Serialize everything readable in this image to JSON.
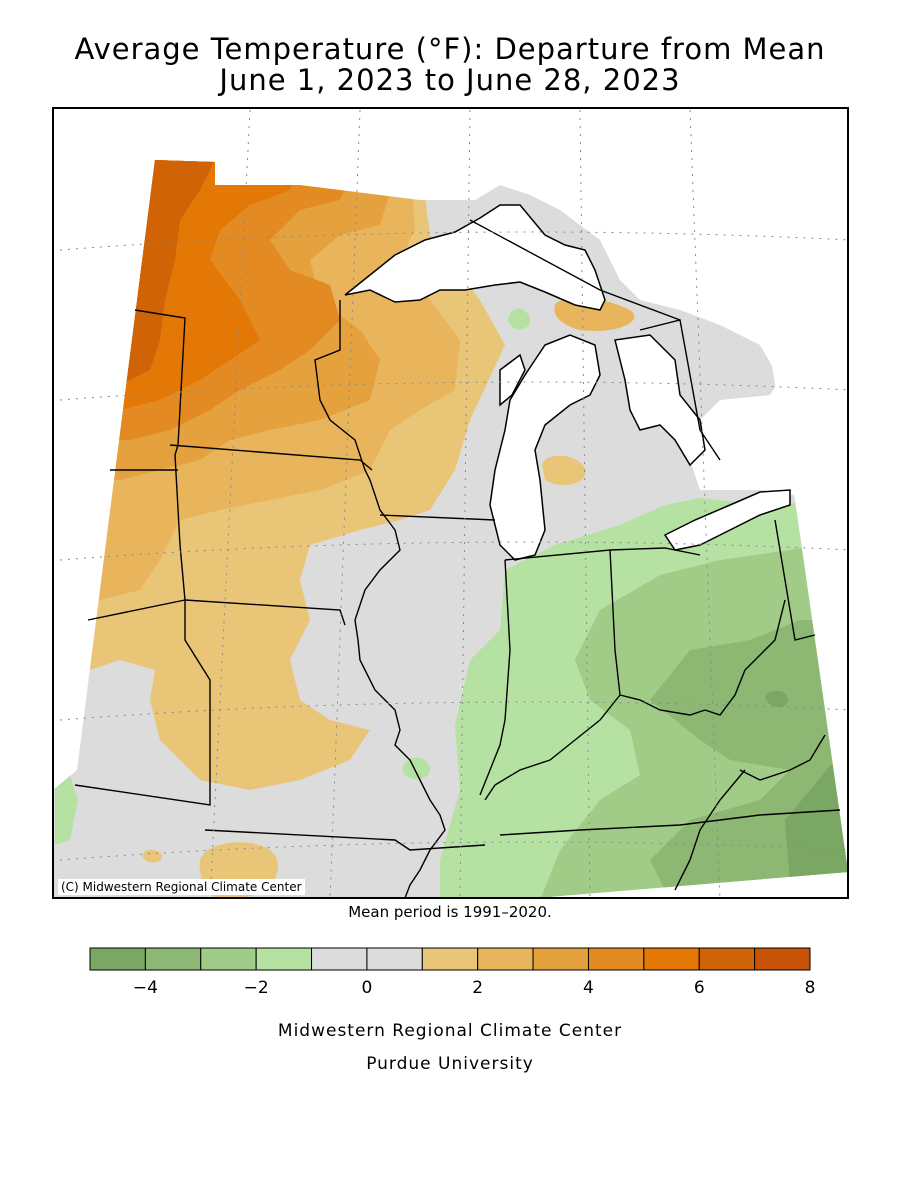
{
  "title": {
    "line1": "Average Temperature (°F): Departure from Mean",
    "line2": "June 1, 2023 to June 28, 2023"
  },
  "copyright": "(C) Midwestern Regional Climate Center",
  "mean_note": "Mean period is 1991–2020.",
  "credits": {
    "line1": "Midwestern Regional Climate Center",
    "line2": "Purdue University"
  },
  "legend": {
    "bins": [
      {
        "from": -5,
        "to": -4,
        "color": "#7aa864"
      },
      {
        "from": -4,
        "to": -3,
        "color": "#8cb873"
      },
      {
        "from": -3,
        "to": -2,
        "color": "#a0cc88"
      },
      {
        "from": -2,
        "to": -1,
        "color": "#b5e2a2"
      },
      {
        "from": -1,
        "to": 0,
        "color": "#dcdcdc"
      },
      {
        "from": 0,
        "to": 1,
        "color": "#dcdcdc"
      },
      {
        "from": 1,
        "to": 2,
        "color": "#e9c677"
      },
      {
        "from": 2,
        "to": 3,
        "color": "#e8b45c"
      },
      {
        "from": 3,
        "to": 4,
        "color": "#e6a13f"
      },
      {
        "from": 4,
        "to": 5,
        "color": "#e48a22"
      },
      {
        "from": 5,
        "to": 6,
        "color": "#e37806"
      },
      {
        "from": 6,
        "to": 7,
        "color": "#d06306"
      },
      {
        "from": 7,
        "to": 8,
        "color": "#c65308"
      }
    ],
    "tick_labels": [
      "−4",
      "−2",
      "0",
      "2",
      "4",
      "6",
      "8"
    ]
  },
  "colors": {
    "neutral": "#dcdcdc",
    "warm_1": "#e9c677",
    "warm_2": "#e8b45c",
    "warm_3": "#e6a13f",
    "warm_4": "#e48a22",
    "warm_5": "#e37806",
    "warm_6": "#d06306",
    "cool_1": "#b5e2a2",
    "cool_2": "#a0cc88",
    "cool_3": "#8cb873",
    "cool_4": "#7aa864",
    "water": "#ffffff"
  }
}
